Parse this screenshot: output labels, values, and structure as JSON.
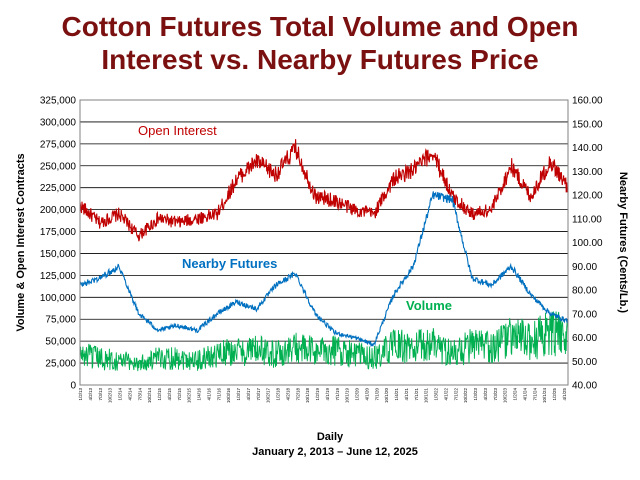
{
  "title_line1": "Cotton Futures Total Volume and Open",
  "title_line2": "Interest vs. Nearby Futures Price",
  "chart_data": {
    "type": "line",
    "title": "Cotton Futures Total Volume and Open Interest vs. Nearby Futures Price",
    "xlabel": "Daily",
    "subtitle": "January 2, 2013 – June 12, 2025",
    "ylabel_left": "Volume & Open Interest Contracts",
    "ylabel_right": "Nearby Futures (Cents/Lb.)",
    "ylim_left": [
      0,
      325000
    ],
    "ylim_right": [
      40,
      160
    ],
    "yticks_left": [
      "0",
      "25,000",
      "50,000",
      "75,000",
      "100,000",
      "125,000",
      "150,000",
      "175,000",
      "200,000",
      "225,000",
      "250,000",
      "275,000",
      "300,000",
      "325,000"
    ],
    "yticks_right": [
      "40.00",
      "50.00",
      "60.00",
      "70.00",
      "80.00",
      "90.00",
      "100.00",
      "110.00",
      "120.00",
      "130.00",
      "140.00",
      "150.00",
      "160.00"
    ],
    "grid": true,
    "x": [
      2013.0,
      2013.5,
      2014.0,
      2014.5,
      2015.0,
      2015.5,
      2016.0,
      2016.5,
      2017.0,
      2017.5,
      2018.0,
      2018.5,
      2019.0,
      2019.5,
      2020.0,
      2020.5,
      2021.0,
      2021.5,
      2022.0,
      2022.5,
      2023.0,
      2023.5,
      2024.0,
      2024.5,
      2025.0,
      2025.45
    ],
    "series": [
      {
        "name": "Open Interest",
        "axis": "left",
        "color": "#c00000",
        "values": [
          205000,
          185000,
          195000,
          170000,
          190000,
          185000,
          190000,
          195000,
          235000,
          255000,
          240000,
          270000,
          215000,
          210000,
          200000,
          195000,
          235000,
          245000,
          265000,
          215000,
          195000,
          200000,
          250000,
          215000,
          255000,
          225000
        ]
      },
      {
        "name": "Nearby Futures",
        "axis": "right",
        "color": "#0070c0",
        "values": [
          82,
          85,
          90,
          70,
          63,
          65,
          63,
          70,
          75,
          72,
          82,
          87,
          70,
          62,
          60,
          57,
          78,
          90,
          120,
          118,
          85,
          82,
          90,
          78,
          70,
          67
        ]
      },
      {
        "name": "Volume",
        "axis": "left",
        "color": "#00b050",
        "values": [
          35000,
          30000,
          28000,
          25000,
          30000,
          32000,
          28000,
          35000,
          38000,
          40000,
          35000,
          42000,
          38000,
          40000,
          35000,
          30000,
          45000,
          42000,
          48000,
          35000,
          45000,
          42000,
          55000,
          50000,
          60000,
          55000
        ]
      }
    ],
    "x_tick_labels": [
      "1/2/13",
      "4/2/13",
      "7/3/13",
      "10/2/13",
      "1/2/14",
      "4/2/14",
      "7/3/14",
      "10/2/14",
      "1/2/15",
      "4/2/15",
      "7/2/15",
      "10/2/15",
      "1/4/16",
      "4/1/16",
      "7/1/16",
      "10/3/16",
      "1/3/17",
      "4/3/17",
      "7/3/17",
      "10/2/17",
      "1/2/18",
      "4/2/18",
      "7/2/18",
      "10/1/18",
      "1/2/19",
      "4/1/19",
      "7/1/19",
      "10/1/19",
      "1/2/20",
      "4/1/20",
      "7/1/20",
      "10/1/20",
      "1/4/21",
      "4/1/21",
      "7/1/21",
      "10/1/21",
      "1/3/22",
      "4/1/22",
      "7/1/22",
      "10/3/22",
      "1/3/23",
      "4/3/23",
      "7/3/23",
      "10/2/23",
      "1/2/24",
      "4/1/24",
      "7/1/24",
      "10/1/24",
      "1/2/25",
      "4/1/25"
    ]
  }
}
